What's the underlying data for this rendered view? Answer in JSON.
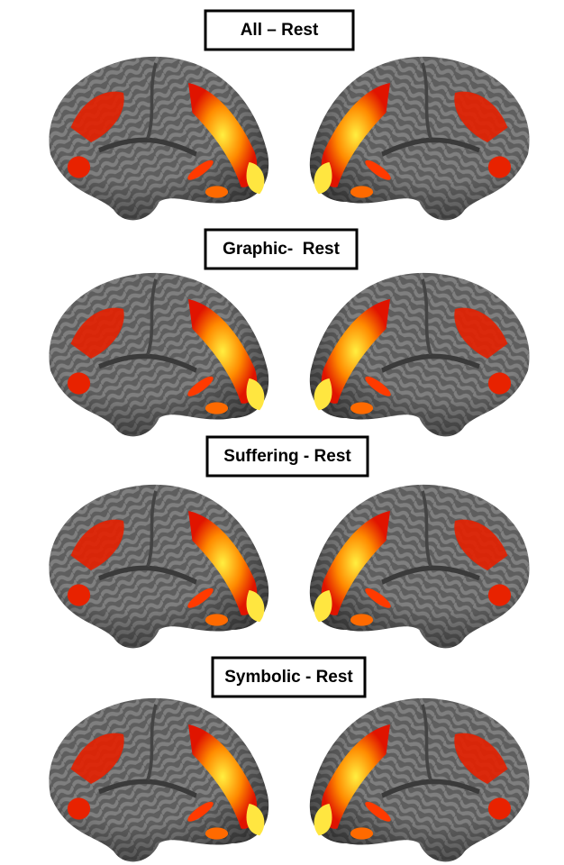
{
  "panels": [
    {
      "label": "All – Rest"
    },
    {
      "label": "Graphic-  Rest"
    },
    {
      "label": "Suffering - Rest"
    },
    {
      "label": "Symbolic - Rest"
    }
  ]
}
